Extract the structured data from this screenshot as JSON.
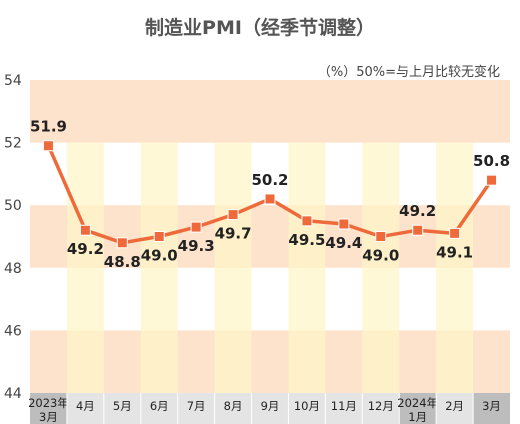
{
  "chart_data": {
    "type": "line",
    "title": "制造业PMI（经季节调整）",
    "note": "（%）50%=与上月比较无变化",
    "categories": [
      [
        "2023年",
        "3月"
      ],
      [
        "4月"
      ],
      [
        "5月"
      ],
      [
        "6月"
      ],
      [
        "7月"
      ],
      [
        "8月"
      ],
      [
        "9月"
      ],
      [
        "10月"
      ],
      [
        "11月"
      ],
      [
        "12月"
      ],
      [
        "2024年",
        "1月"
      ],
      [
        "2月"
      ],
      [
        "3月"
      ]
    ],
    "values": [
      51.9,
      49.2,
      48.8,
      49.0,
      49.3,
      49.7,
      50.2,
      49.5,
      49.4,
      49.0,
      49.2,
      49.1,
      50.8
    ],
    "value_labels": [
      "51.9",
      "49.2",
      "48.8",
      "49.0",
      "49.3",
      "49.7",
      "50.2",
      "49.5",
      "49.4",
      "49.0",
      "49.2",
      "49.1",
      "50.8"
    ],
    "ylim": [
      44,
      54
    ],
    "yticks": [
      44,
      46,
      48,
      50,
      52,
      54
    ],
    "grid": "horizontal bands",
    "colors": {
      "line": "#ef6a3b",
      "band": "#fde2cc",
      "column_highlight": "#fef6c8",
      "axis_dark": "#bdbdbd",
      "axis_light": "#e4e4e4"
    }
  }
}
